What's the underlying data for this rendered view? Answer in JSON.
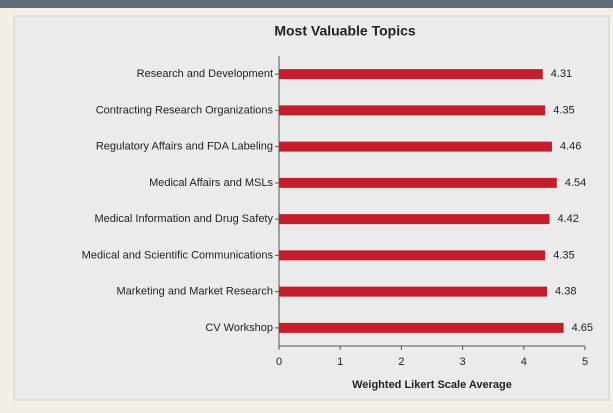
{
  "chart_data": {
    "type": "bar",
    "orientation": "horizontal",
    "title": "Most Valuable Topics",
    "xlabel": "Weighted Likert Scale Average",
    "categories": [
      "Research and Development",
      "Contracting Research Organizations",
      "Regulatory Affairs and FDA Labeling",
      "Medical Affairs and MSLs",
      "Medical Information and Drug Safety",
      "Medical and Scientific Communications",
      "Marketing and Market Research",
      "CV Workshop"
    ],
    "values": [
      4.31,
      4.35,
      4.46,
      4.54,
      4.42,
      4.35,
      4.38,
      4.65
    ],
    "color": "#c21f2b",
    "xlim": [
      0,
      5
    ],
    "xticks": [
      0,
      1,
      2,
      3,
      4,
      5
    ]
  }
}
